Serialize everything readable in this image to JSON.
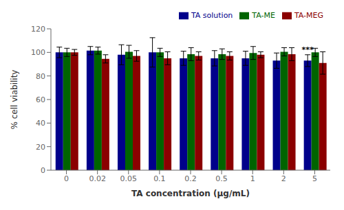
{
  "chart_data": {
    "type": "bar",
    "categories": [
      "0",
      "0.02",
      "0.05",
      "0.1",
      "0.2",
      "0.5",
      "1",
      "2",
      "5"
    ],
    "series": [
      {
        "name": "TA solution",
        "color": "#00008B",
        "values": [
          100.0,
          101.5,
          98.0,
          100.0,
          95.0,
          95.0,
          95.0,
          93.0,
          93.0
        ],
        "errors": [
          4.5,
          3.5,
          8.5,
          12.5,
          6.0,
          6.5,
          6.0,
          6.5,
          5.0
        ]
      },
      {
        "name": "TA-ME",
        "color": "#006400",
        "values": [
          100.0,
          101.5,
          100.5,
          100.0,
          98.5,
          98.5,
          99.5,
          100.5,
          100.0
        ],
        "errors": [
          3.5,
          3.0,
          5.5,
          3.5,
          5.5,
          4.5,
          5.5,
          3.5,
          3.5
        ]
      },
      {
        "name": "TA-MEG",
        "color": "#8B0000",
        "values": [
          100.0,
          94.5,
          97.0,
          95.0,
          97.0,
          97.0,
          98.0,
          98.5,
          91.0
        ],
        "errors": [
          2.5,
          3.5,
          4.5,
          5.5,
          3.5,
          3.5,
          2.5,
          5.5,
          9.5
        ]
      }
    ],
    "xlabel": "TA concentration (μg/mL)",
    "ylabel": "% cell viability",
    "ylim": [
      0,
      120
    ],
    "yticks": [
      0,
      20,
      40,
      60,
      80,
      100,
      120
    ],
    "legend": "upper right",
    "grid": false,
    "annotations": [
      {
        "text": "***",
        "category": "5",
        "series": "TA solution"
      }
    ]
  }
}
